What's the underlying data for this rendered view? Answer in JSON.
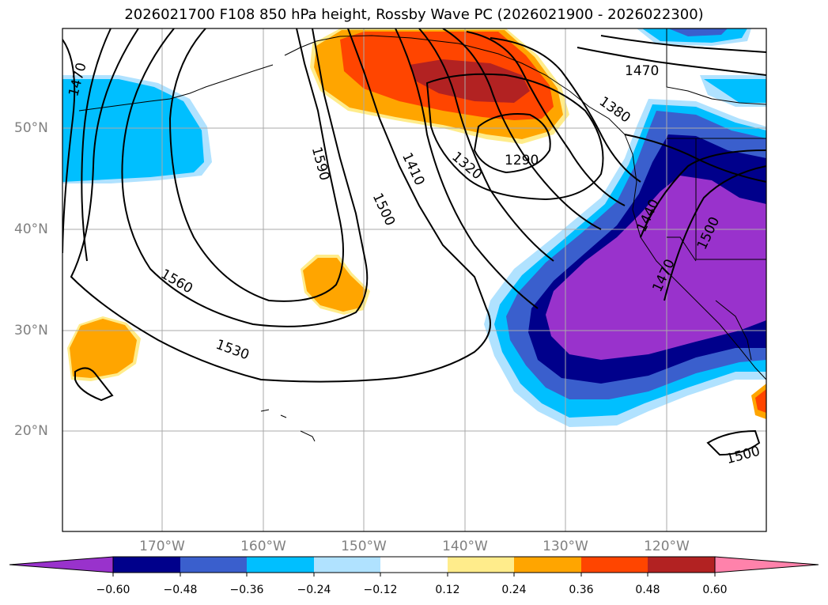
{
  "title": "2026021700 F108 850 hPa height, Rossby Wave PC (2026021900 - 2026022300)",
  "latitudes": [
    "50°N",
    "40°N",
    "30°N",
    "20°N"
  ],
  "longitudes": [
    "170°W",
    "160°W",
    "150°W",
    "140°W",
    "130°W",
    "120°W"
  ],
  "contour_labels": [
    "1470",
    "1590",
    "1410",
    "1500",
    "1320",
    "1290",
    "1380",
    "1470",
    "1440",
    "1500",
    "1470",
    "1560",
    "1530",
    "1500"
  ],
  "colorbar": {
    "ticks": [
      "−0.60",
      "−0.48",
      "−0.36",
      "−0.24",
      "−0.12",
      "0.12",
      "0.24",
      "0.36",
      "0.48",
      "0.60"
    ],
    "colors": [
      "#9932cc",
      "#00008b",
      "#3a5fcd",
      "#00bfff",
      "#b0e2ff",
      "#ffffff",
      "#ffec8b",
      "#ffa500",
      "#ff4500",
      "#b22222",
      "#ff82ab"
    ]
  },
  "colors": {
    "purple": "#9932cc",
    "navy": "#00008b",
    "royal": "#3a5fcd",
    "sky": "#00bfff",
    "lightblue": "#b0e2ff",
    "lightyellow": "#ffec8b",
    "orange": "#ffa500",
    "redorange": "#ff4500",
    "firebrick": "#b22222",
    "pink": "#ff82ab"
  }
}
